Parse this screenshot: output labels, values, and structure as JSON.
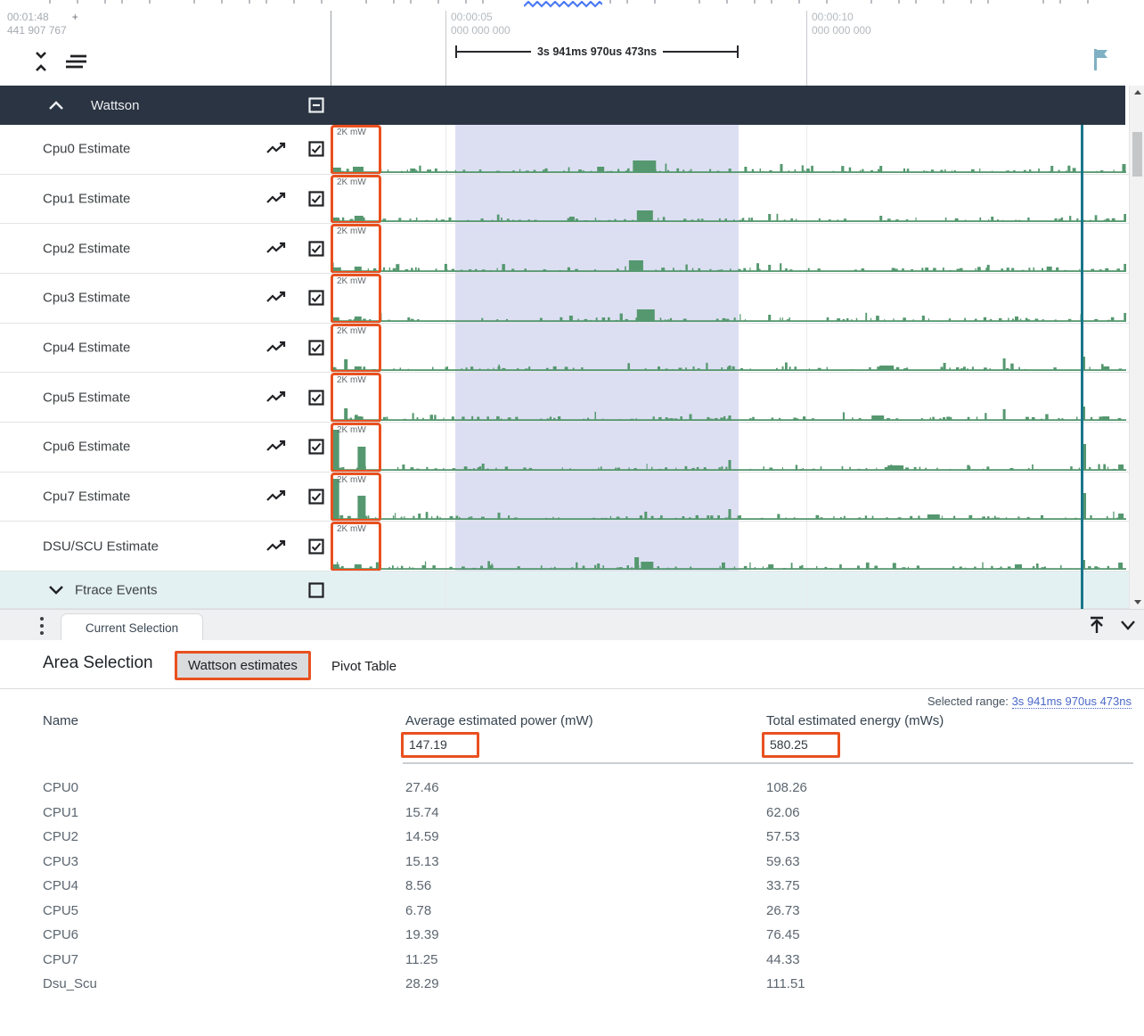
{
  "ruler": {
    "left_time_primary": "00:01:48",
    "left_time_plus": "+",
    "left_time_secondary": "441 907 767",
    "markers": [
      {
        "time": "00:00:05",
        "sub": "000 000 000"
      },
      {
        "time": "00:00:10",
        "sub": "000 000 000"
      }
    ],
    "span_label": "3s 941ms 970us 473ns"
  },
  "group_header": {
    "title": "Wattson"
  },
  "tracks": [
    {
      "name": "Cpu0 Estimate",
      "scale": "2K mW",
      "checked": true,
      "seed": 11,
      "spikes": [
        [
          0.002,
          5,
          10
        ],
        [
          0.028,
          6,
          12
        ],
        [
          0.1,
          4,
          6
        ],
        [
          0.335,
          6,
          8
        ],
        [
          0.38,
          13,
          26
        ],
        [
          0.52,
          6,
          3
        ],
        [
          0.565,
          9,
          3
        ],
        [
          0.69,
          7,
          3
        ],
        [
          0.905,
          7,
          3
        ],
        [
          0.995,
          9,
          4
        ]
      ]
    },
    {
      "name": "Cpu1 Estimate",
      "scale": "2K mW",
      "checked": true,
      "seed": 23,
      "spikes": [
        [
          0.002,
          4,
          8
        ],
        [
          0.03,
          6,
          10
        ],
        [
          0.3,
          5,
          6
        ],
        [
          0.385,
          12,
          18
        ],
        [
          0.55,
          8,
          3
        ],
        [
          0.69,
          6,
          3
        ],
        [
          0.83,
          5,
          3
        ],
        [
          0.997,
          8,
          4
        ]
      ]
    },
    {
      "name": "Cpu2 Estimate",
      "scale": "2K mW",
      "checked": true,
      "seed": 37,
      "spikes": [
        [
          0.002,
          4,
          8
        ],
        [
          0.03,
          5,
          8
        ],
        [
          0.375,
          12,
          16
        ],
        [
          0.55,
          7,
          3
        ],
        [
          0.825,
          7,
          3
        ],
        [
          0.9,
          5,
          6
        ],
        [
          0.997,
          8,
          4
        ]
      ]
    },
    {
      "name": "Cpu3 Estimate",
      "scale": "2K mW",
      "checked": true,
      "seed": 49,
      "spikes": [
        [
          0.002,
          4,
          8
        ],
        [
          0.03,
          5,
          8
        ],
        [
          0.3,
          6,
          4
        ],
        [
          0.385,
          13,
          20
        ],
        [
          0.55,
          7,
          3
        ],
        [
          0.86,
          5,
          4
        ],
        [
          0.997,
          9,
          4
        ]
      ]
    },
    {
      "name": "Cpu4 Estimate",
      "scale": "2K mW",
      "checked": true,
      "seed": 61,
      "spikes": [
        [
          0.017,
          12,
          4
        ],
        [
          0.03,
          4,
          8
        ],
        [
          0.21,
          4,
          3
        ],
        [
          0.5,
          5,
          3
        ],
        [
          0.69,
          5,
          16
        ],
        [
          0.77,
          8,
          3
        ],
        [
          0.845,
          13,
          3
        ],
        [
          0.944,
          15,
          4
        ],
        [
          0.97,
          4,
          8
        ]
      ]
    },
    {
      "name": "Cpu5 Estimate",
      "scale": "2K mW",
      "checked": true,
      "seed": 73,
      "spikes": [
        [
          0.017,
          13,
          4
        ],
        [
          0.03,
          4,
          8
        ],
        [
          0.5,
          5,
          3
        ],
        [
          0.68,
          5,
          14
        ],
        [
          0.845,
          12,
          3
        ],
        [
          0.944,
          15,
          4
        ],
        [
          0.97,
          4,
          8
        ]
      ]
    },
    {
      "name": "Cpu6 Estimate",
      "scale": "2K mW",
      "checked": true,
      "seed": 87,
      "spikes": [
        [
          0.003,
          45,
          7
        ],
        [
          0.034,
          26,
          9
        ],
        [
          0.09,
          6,
          3
        ],
        [
          0.19,
          7,
          3
        ],
        [
          0.5,
          11,
          3
        ],
        [
          0.7,
          5,
          18
        ],
        [
          0.944,
          29,
          5
        ],
        [
          0.99,
          6,
          6
        ]
      ]
    },
    {
      "name": "Cpu7 Estimate",
      "scale": "2K mW",
      "checked": true,
      "seed": 95,
      "spikes": [
        [
          0.003,
          45,
          7
        ],
        [
          0.034,
          26,
          9
        ],
        [
          0.11,
          6,
          3
        ],
        [
          0.21,
          7,
          3
        ],
        [
          0.5,
          11,
          3
        ],
        [
          0.75,
          5,
          14
        ],
        [
          0.944,
          29,
          5
        ],
        [
          0.99,
          6,
          6
        ]
      ]
    },
    {
      "name": "DSU/SCU Estimate",
      "scale": "2K mW",
      "checked": true,
      "seed": 103,
      "spikes": [
        [
          0.002,
          5,
          8
        ],
        [
          0.03,
          5,
          8
        ],
        [
          0.2,
          4,
          4
        ],
        [
          0.335,
          6,
          3
        ],
        [
          0.382,
          13,
          5
        ],
        [
          0.39,
          8,
          14
        ],
        [
          0.55,
          5,
          6
        ],
        [
          0.86,
          5,
          8
        ],
        [
          0.944,
          10,
          4
        ],
        [
          0.99,
          7,
          5
        ]
      ]
    }
  ],
  "ftrace": {
    "name": "Ftrace Events",
    "checked": false
  },
  "tabbar": {
    "tab": "Current Selection"
  },
  "details": {
    "title": "Area Selection",
    "tabs": [
      {
        "label": "Wattson estimates",
        "active": true
      },
      {
        "label": "Pivot Table",
        "active": false
      }
    ],
    "selected_range_label": "Selected range:",
    "selected_range_value": "3s 941ms 970us 473ns",
    "table": {
      "columns": [
        "Name",
        "Average estimated power (mW)",
        "Total estimated energy (mWs)"
      ],
      "summary": {
        "avg": "147.19",
        "total": "580.25"
      },
      "rows": [
        {
          "name": "CPU0",
          "avg": "27.46",
          "total": "108.26"
        },
        {
          "name": "CPU1",
          "avg": "15.74",
          "total": "62.06"
        },
        {
          "name": "CPU2",
          "avg": "14.59",
          "total": "57.53"
        },
        {
          "name": "CPU3",
          "avg": "15.13",
          "total": "59.63"
        },
        {
          "name": "CPU4",
          "avg": "8.56",
          "total": "33.75"
        },
        {
          "name": "CPU5",
          "avg": "6.78",
          "total": "26.73"
        },
        {
          "name": "CPU6",
          "avg": "19.39",
          "total": "76.45"
        },
        {
          "name": "CPU7",
          "avg": "11.25",
          "total": "44.33"
        },
        {
          "name": "Dsu_Scu",
          "avg": "28.29",
          "total": "111.51"
        }
      ]
    }
  },
  "colors": {
    "accent_orange": "#e8501f",
    "wave_green": "#55986f",
    "selection_lavender": "#dcdff2",
    "cursor_teal": "#19768a",
    "header_dark": "#2b3442",
    "link_blue": "#4a68c8",
    "ftrace_bg": "#e4f1f3"
  }
}
